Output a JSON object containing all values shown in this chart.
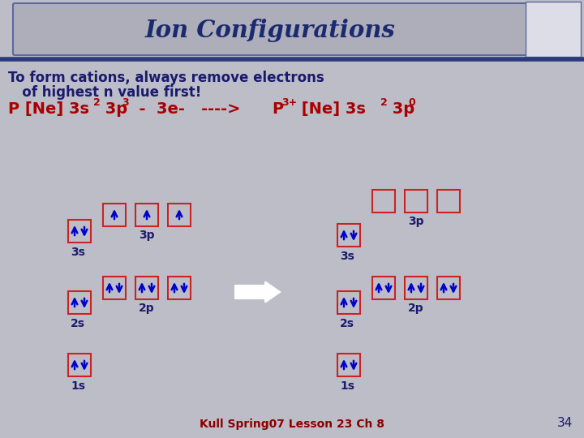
{
  "title": "Ion Configurations",
  "bg_color": "#bdbdc8",
  "title_bg": "#aeaebb",
  "title_text_color": "#1a2a6e",
  "body_text_color": "#1a1a6e",
  "red_color": "#aa0000",
  "blue_color": "#0000cc",
  "box_edge_color": "#cc2222",
  "footer": "Kull Spring07 Lesson 23 Ch 8",
  "footer_color": "#8b0000",
  "page_num": "34"
}
